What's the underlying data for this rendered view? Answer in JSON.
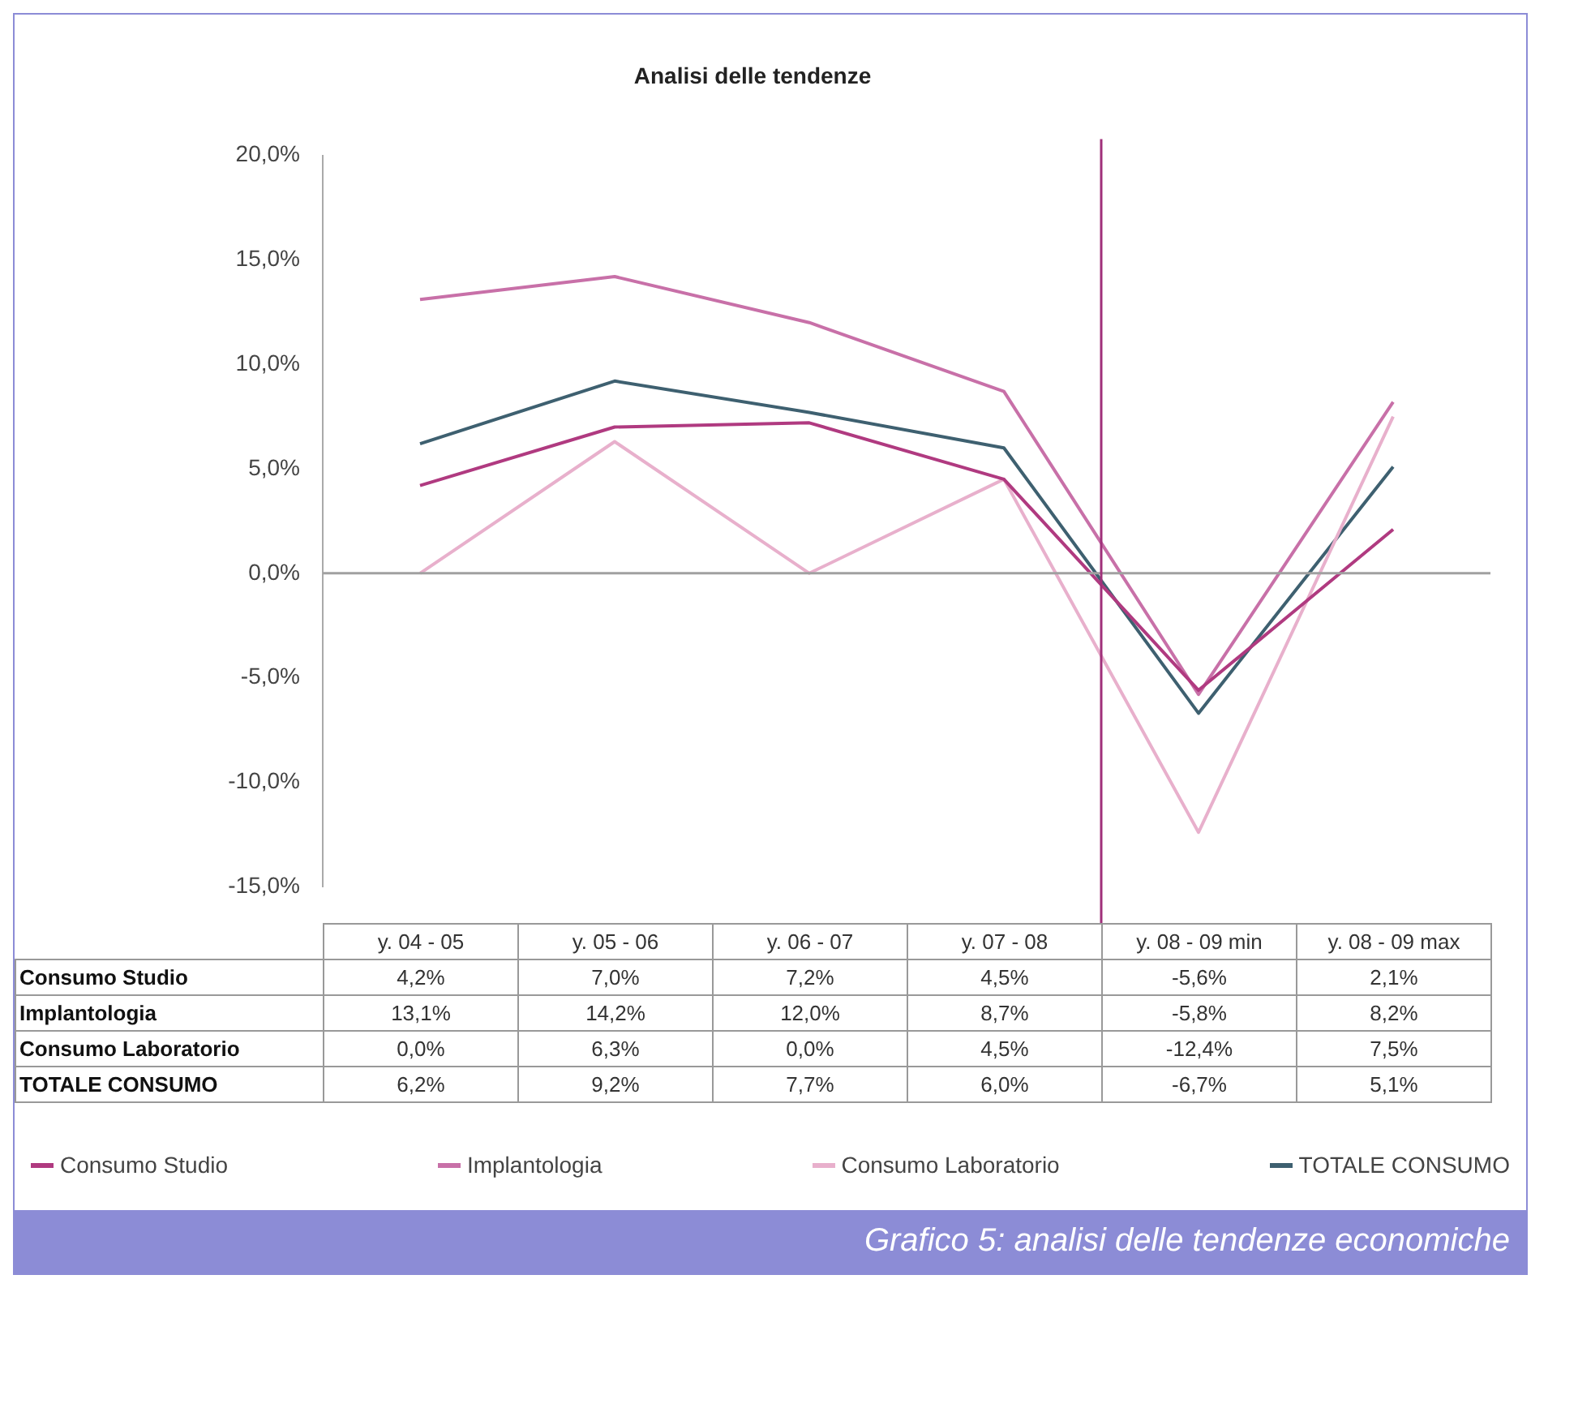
{
  "chart_data": {
    "type": "line",
    "title": "Analisi delle tendenze",
    "categories": [
      "y. 04 - 05",
      "y. 05 - 06",
      "y. 06 - 07",
      "y. 07 - 08",
      "y. 08 - 09 min",
      "y. 08 - 09 max"
    ],
    "series": [
      {
        "name": "Consumo Studio",
        "color": "#b03a80",
        "values": [
          4.2,
          7.0,
          7.2,
          4.5,
          -5.6,
          2.1
        ],
        "value_labels": [
          "4,2%",
          "7,0%",
          "7,2%",
          "4,5%",
          "-5,6%",
          "2,1%"
        ]
      },
      {
        "name": "Implantologia",
        "color": "#c870a8",
        "values": [
          13.1,
          14.2,
          12.0,
          8.7,
          -5.8,
          8.2
        ],
        "value_labels": [
          "13,1%",
          "14,2%",
          "12,0%",
          "8,7%",
          "-5,8%",
          "8,2%"
        ]
      },
      {
        "name": "Consumo Laboratorio",
        "color": "#e8b0cc",
        "values": [
          0.0,
          6.3,
          0.0,
          4.5,
          -12.4,
          7.5
        ],
        "value_labels": [
          "0,0%",
          "6,3%",
          "0,0%",
          "4,5%",
          "-12,4%",
          "7,5%"
        ]
      },
      {
        "name": "TOTALE CONSUMO",
        "color": "#3e6070",
        "values": [
          6.2,
          9.2,
          7.7,
          6.0,
          -6.7,
          5.1
        ],
        "value_labels": [
          "6,2%",
          "9,2%",
          "7,7%",
          "6,0%",
          "-6,7%",
          "5,1%"
        ]
      }
    ],
    "ylim": [
      -15,
      20
    ],
    "yticks": [
      {
        "value": -15,
        "label": "-15,0%"
      },
      {
        "value": -10,
        "label": "-10,0%"
      },
      {
        "value": -5,
        "label": "-5,0%"
      },
      {
        "value": 0,
        "label": "0,0%"
      },
      {
        "value": 5,
        "label": "5,0%"
      },
      {
        "value": 10,
        "label": "10,0%"
      },
      {
        "value": 15,
        "label": "15,0%"
      },
      {
        "value": 20,
        "label": "20,0%"
      }
    ],
    "ref_lines": [
      {
        "axis": "y",
        "value": 0,
        "color": "#a0a0a0"
      },
      {
        "axis": "x",
        "value": "y. 08 - 09 min",
        "color": "#a0307a"
      }
    ],
    "legend": "bottom",
    "grid": false,
    "marker": "none",
    "line_style": "solid",
    "annotations": [
      "Grafico 5: analisi delle tendenze economiche"
    ]
  }
}
